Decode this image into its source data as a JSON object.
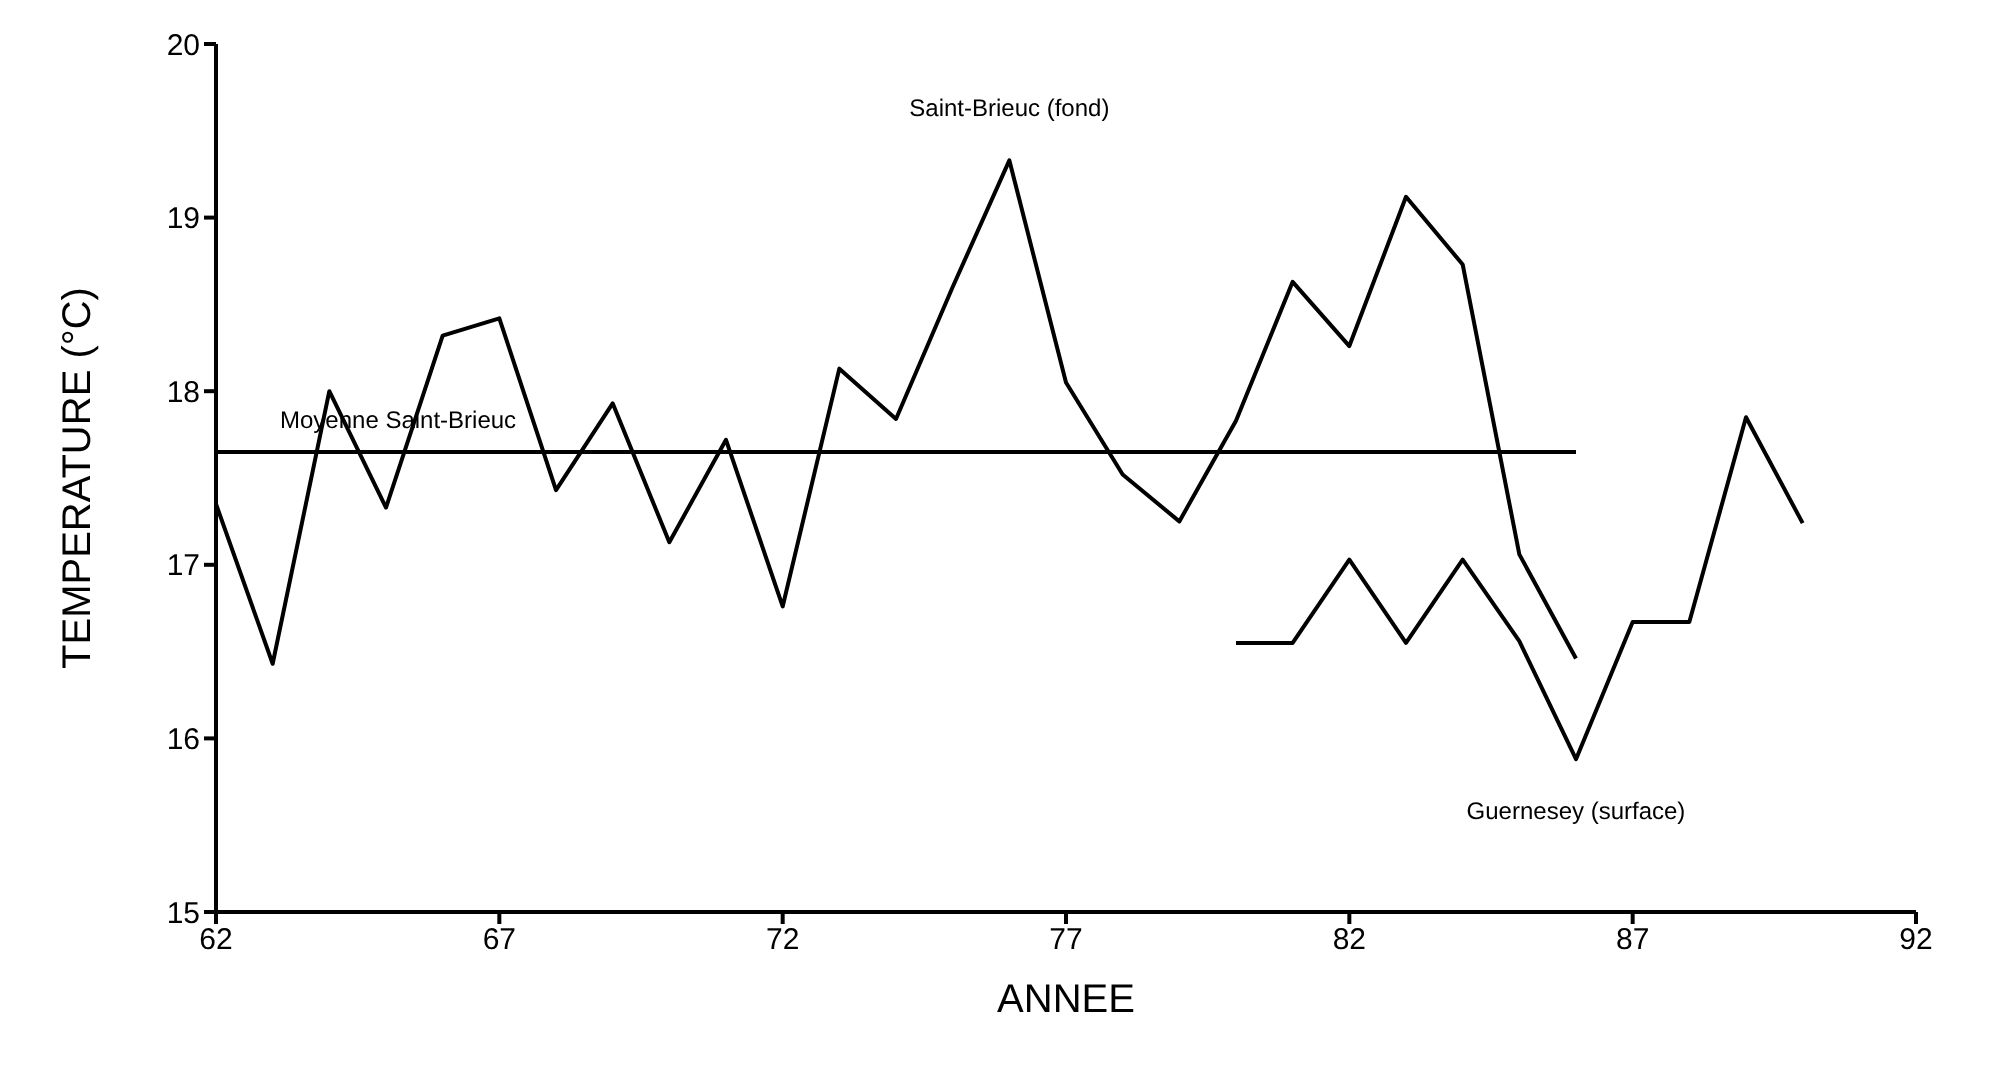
{
  "chart_data": {
    "type": "line",
    "xlabel": "ANNEE",
    "ylabel": "TEMPERATURE (°C)",
    "xlim": [
      62,
      92
    ],
    "xticks": [
      62,
      67,
      72,
      77,
      82,
      87,
      92
    ],
    "ylim": [
      15,
      20
    ],
    "yticks": [
      15,
      16,
      17,
      18,
      19,
      20
    ],
    "grid": false,
    "legend": false,
    "marker": "none",
    "line_style": "solid",
    "series": [
      {
        "name": "Saint-Brieuc (fond)",
        "color": "#000000",
        "x": [
          62,
          63,
          64,
          65,
          66,
          67,
          68,
          69,
          70,
          71,
          72,
          73,
          74,
          75,
          76,
          77,
          78,
          79,
          80,
          81,
          82,
          83,
          84,
          85,
          86
        ],
        "values": [
          17.35,
          16.43,
          18.0,
          17.33,
          18.32,
          18.42,
          17.43,
          17.93,
          17.13,
          17.72,
          16.76,
          18.13,
          17.84,
          18.6,
          19.33,
          18.05,
          17.52,
          17.25,
          17.83,
          18.63,
          18.26,
          19.12,
          18.73,
          17.06,
          16.46
        ]
      },
      {
        "name": "Moyenne Saint-Brieuc",
        "color": "#000000",
        "x": [
          62,
          86
        ],
        "values": [
          17.65,
          17.65
        ]
      },
      {
        "name": "Guernesey (surface)",
        "color": "#000000",
        "x": [
          80,
          81,
          82,
          83,
          84,
          85,
          86,
          87,
          88,
          89,
          90
        ],
        "values": [
          16.55,
          16.55,
          17.03,
          16.55,
          17.03,
          16.56,
          15.88,
          16.67,
          16.67,
          17.85,
          17.24
        ]
      }
    ]
  }
}
